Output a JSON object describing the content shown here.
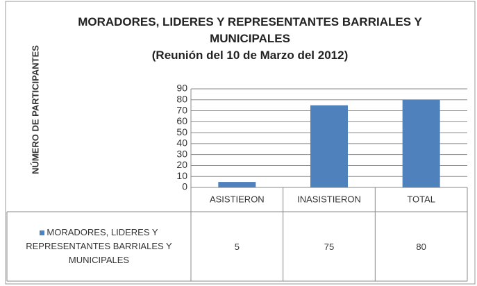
{
  "chart_data": {
    "type": "bar",
    "title": "MORADORES, LIDERES Y REPRESENTANTES BARRIALES Y MUNICIPALES",
    "subtitle": "(Reunión del 10 de Marzo del 2012)",
    "y_label": "NÚMERO DE PARTICIPANTES",
    "categories": [
      "ASISTIERON",
      "INASISTIERON",
      "TOTAL"
    ],
    "series": [
      {
        "name": "MORADORES, LIDERES Y REPRESENTANTES BARRIALES Y MUNICIPALES",
        "color": "#4f81bd",
        "values": [
          5,
          75,
          80
        ]
      }
    ],
    "ylim": [
      0,
      90
    ],
    "yticks": [
      0,
      10,
      20,
      30,
      40,
      50,
      60,
      70,
      80,
      90
    ],
    "grid": true
  }
}
